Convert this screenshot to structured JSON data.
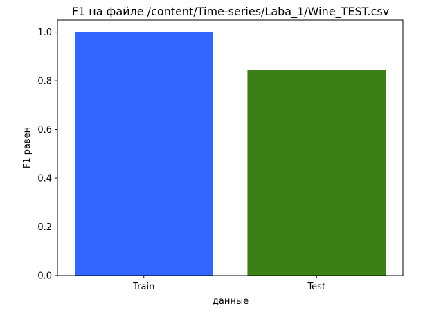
{
  "chart_data": {
    "type": "bar",
    "title": "F1 на файле /content/Time-series/Laba_1/Wine_TEST.csv",
    "xlabel": "данные",
    "ylabel": "F1 равен",
    "categories": [
      "Train",
      "Test"
    ],
    "values": [
      1.0,
      0.843
    ],
    "colors": [
      "#3366ff",
      "#3d7f17"
    ],
    "ylim": [
      0,
      1.05
    ],
    "yticks": [
      0.0,
      0.2,
      0.4,
      0.6,
      0.8,
      1.0
    ],
    "ytick_labels": [
      "0.0",
      "0.2",
      "0.4",
      "0.6",
      "0.8",
      "1.0"
    ],
    "grid": false,
    "legend": "none"
  }
}
